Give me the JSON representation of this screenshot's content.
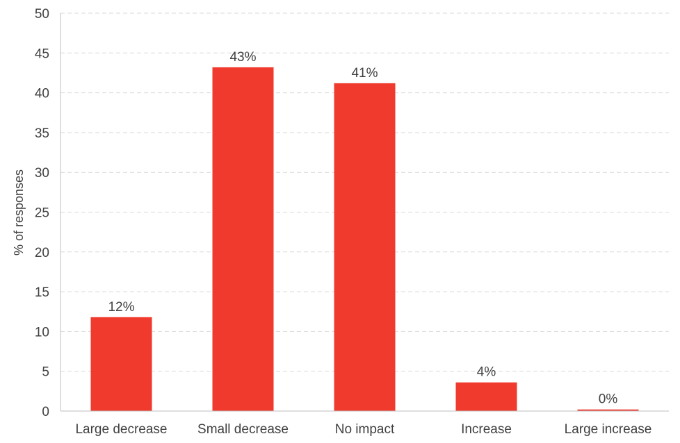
{
  "chart_data": {
    "type": "bar",
    "title": "",
    "xlabel": "",
    "ylabel": "% of responses",
    "ylim": [
      0,
      50
    ],
    "yticks": [
      0,
      5,
      10,
      15,
      20,
      25,
      30,
      35,
      40,
      45,
      50
    ],
    "grid": true,
    "legend": "none",
    "categories": [
      "Large decrease",
      "Small decrease",
      "No impact",
      "Increase",
      "Large increase"
    ],
    "values": [
      11.8,
      43.2,
      41.2,
      3.6,
      0.2
    ],
    "data_labels": [
      "12%",
      "43%",
      "41%",
      "4%",
      "0%"
    ],
    "colors": {
      "bar": "#ef3a2d",
      "grid": "#d9d9d9",
      "axis": "#bfbfbf",
      "text": "#404040"
    }
  }
}
